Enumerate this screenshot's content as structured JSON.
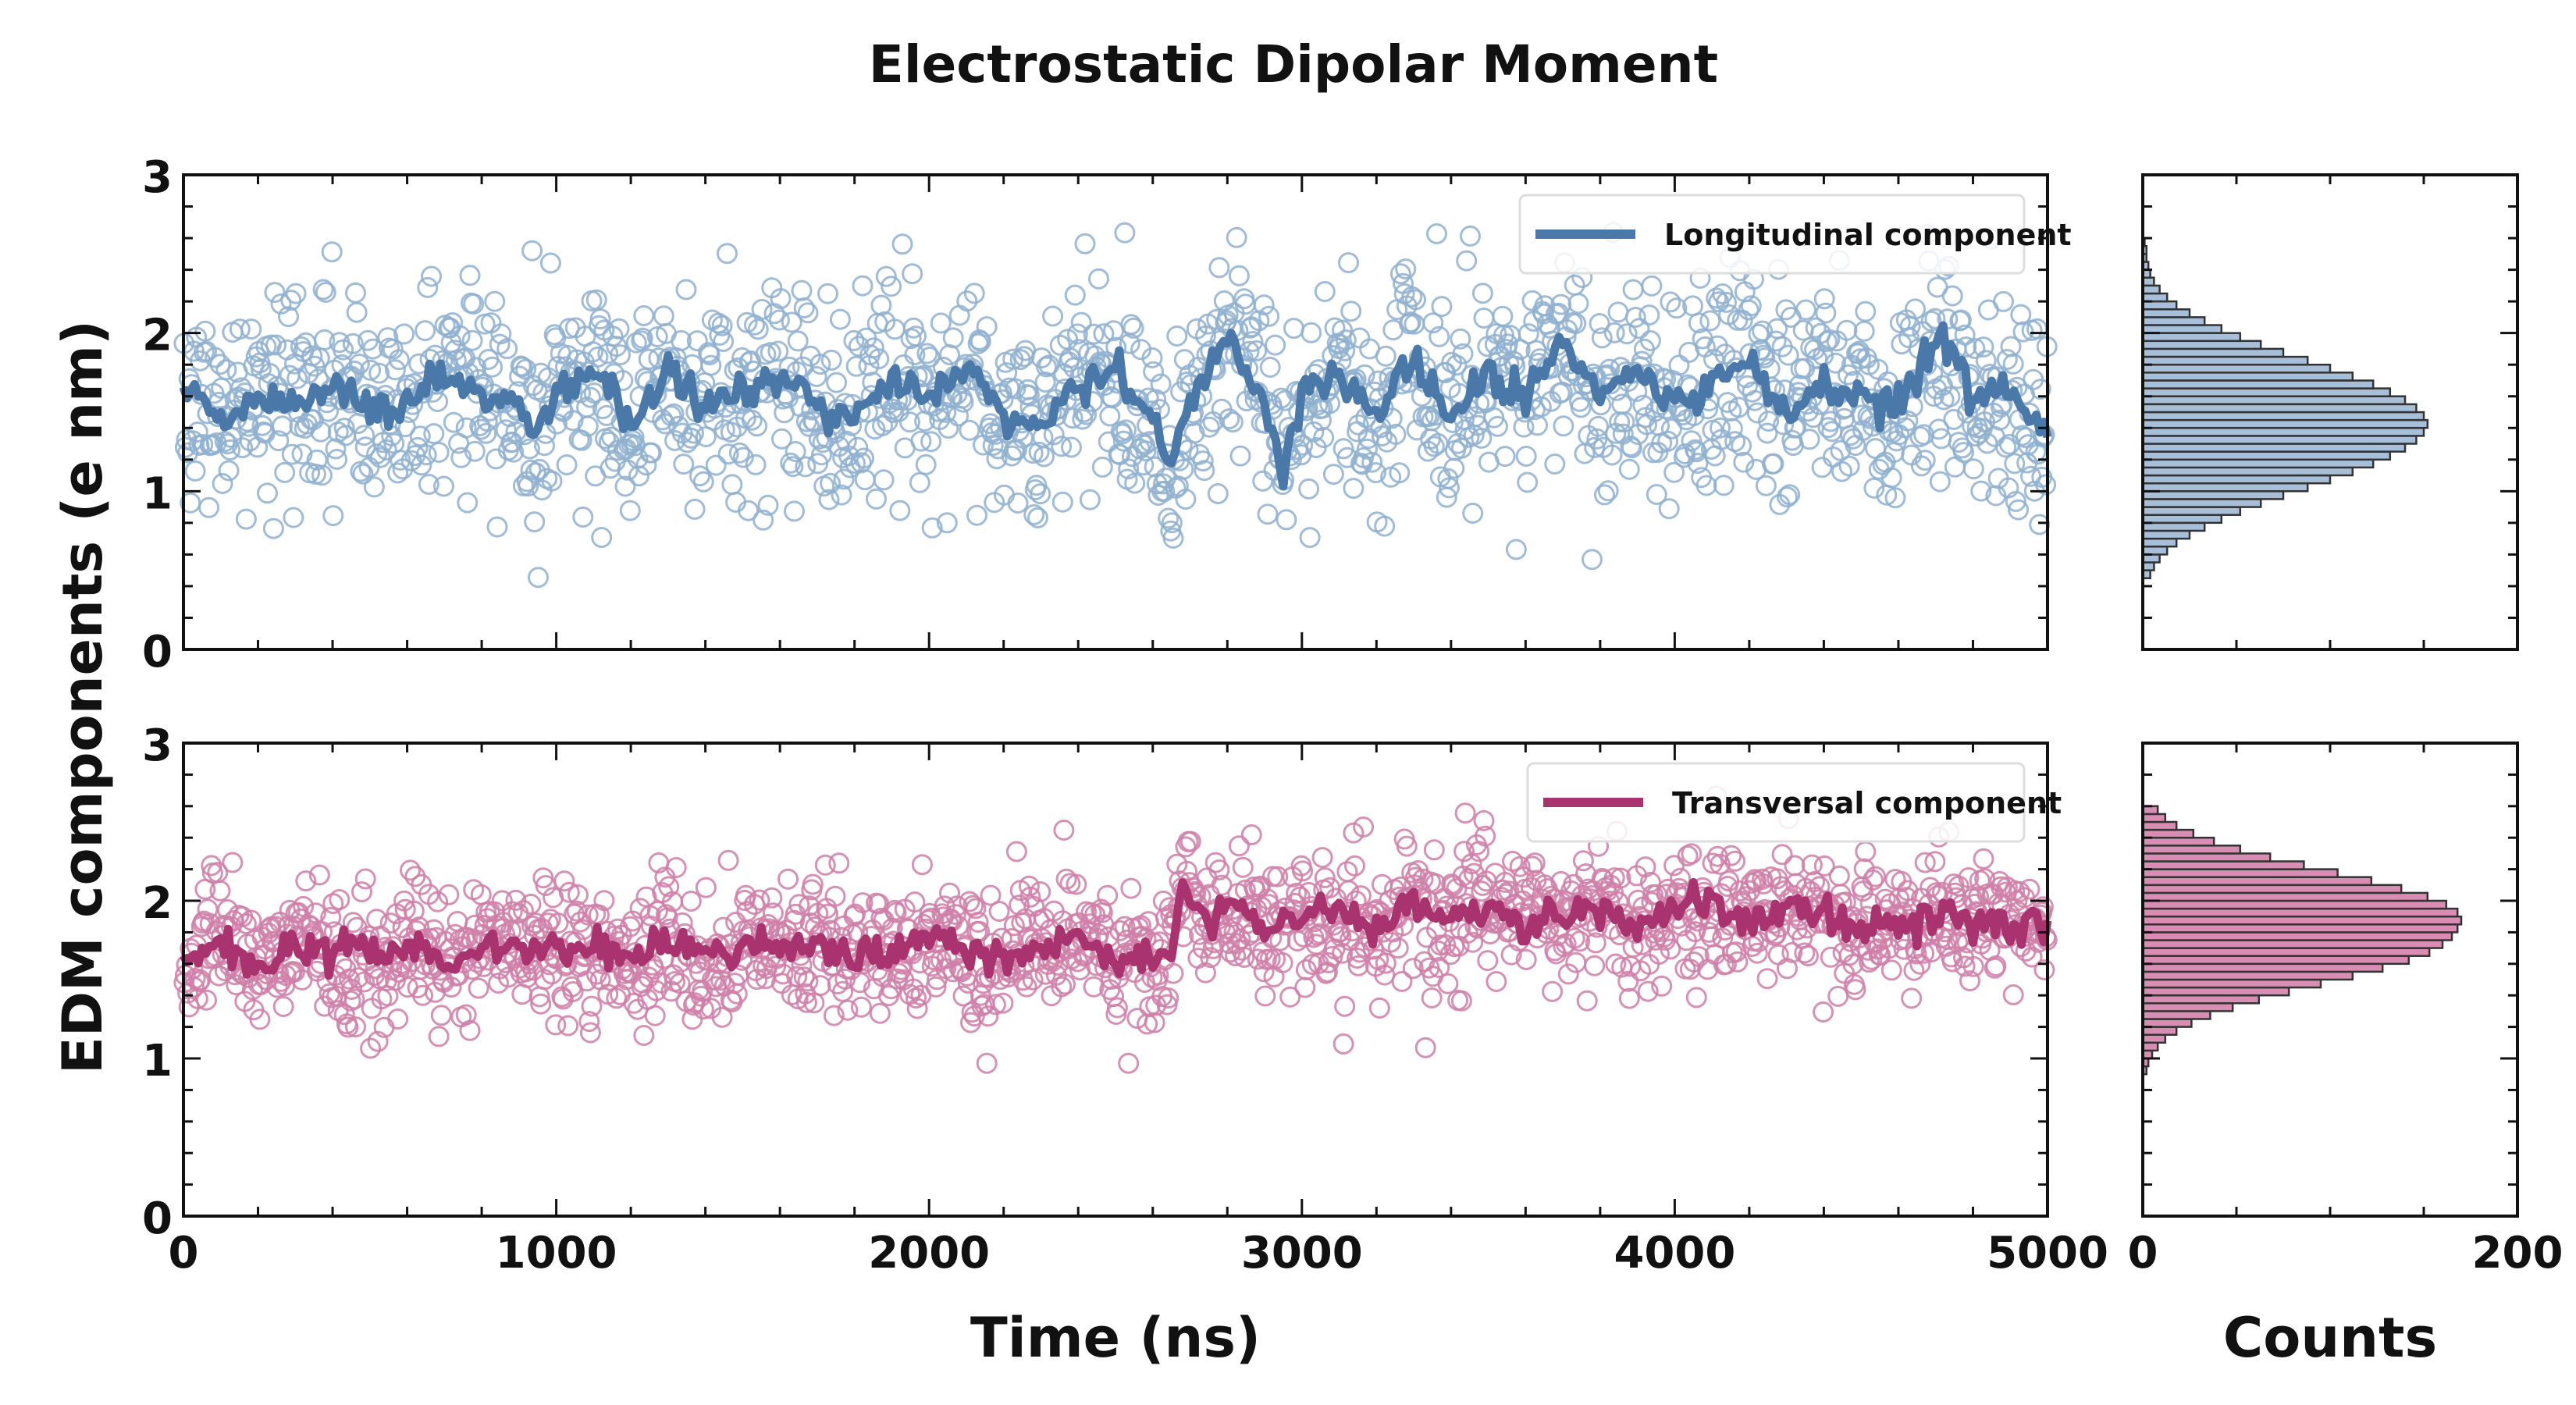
{
  "chart_data": {
    "type": "scatter",
    "title": "Electrostatic Dipolar Moment",
    "xlabel": "Time (ns)",
    "ylabel": "EDM components (e nm)",
    "hist_xlabel": "Counts",
    "xlim": [
      0,
      5000
    ],
    "ylim": [
      0,
      3
    ],
    "hist_xlim": [
      0,
      200
    ],
    "x_ticks": [
      "0",
      "1000",
      "2000",
      "3000",
      "4000",
      "5000"
    ],
    "y_ticks": [
      "0",
      "1",
      "2",
      "3"
    ],
    "hist_x_ticks": [
      "0",
      "200"
    ],
    "grid": false,
    "panels": [
      {
        "legend": "Longitudinal component",
        "legend_position": "top-right",
        "color": "#4a78a8",
        "point_color": "#8fb0cf",
        "hist_fill": "#a7bfd9",
        "scatter_mean": 1.62,
        "scatter_std": 0.38,
        "n_points": 1500,
        "running_average": [
          [
            0,
            1.62
          ],
          [
            100,
            1.45
          ],
          [
            200,
            1.6
          ],
          [
            300,
            1.58
          ],
          [
            400,
            1.65
          ],
          [
            500,
            1.5
          ],
          [
            600,
            1.55
          ],
          [
            700,
            1.75
          ],
          [
            800,
            1.62
          ],
          [
            900,
            1.58
          ],
          [
            950,
            1.35
          ],
          [
            1000,
            1.65
          ],
          [
            1100,
            1.75
          ],
          [
            1200,
            1.4
          ],
          [
            1300,
            1.78
          ],
          [
            1400,
            1.55
          ],
          [
            1500,
            1.6
          ],
          [
            1600,
            1.72
          ],
          [
            1700,
            1.55
          ],
          [
            1800,
            1.5
          ],
          [
            1900,
            1.72
          ],
          [
            2000,
            1.62
          ],
          [
            2100,
            1.75
          ],
          [
            2200,
            1.5
          ],
          [
            2300,
            1.38
          ],
          [
            2400,
            1.65
          ],
          [
            2500,
            1.75
          ],
          [
            2600,
            1.45
          ],
          [
            2650,
            1.2
          ],
          [
            2700,
            1.6
          ],
          [
            2800,
            1.95
          ],
          [
            2900,
            1.55
          ],
          [
            2950,
            1.15
          ],
          [
            3000,
            1.6
          ],
          [
            3100,
            1.75
          ],
          [
            3200,
            1.5
          ],
          [
            3300,
            1.9
          ],
          [
            3400,
            1.45
          ],
          [
            3500,
            1.7
          ],
          [
            3600,
            1.6
          ],
          [
            3700,
            1.95
          ],
          [
            3800,
            1.62
          ],
          [
            3900,
            1.7
          ],
          [
            4000,
            1.55
          ],
          [
            4100,
            1.65
          ],
          [
            4200,
            1.85
          ],
          [
            4300,
            1.45
          ],
          [
            4400,
            1.7
          ],
          [
            4500,
            1.62
          ],
          [
            4600,
            1.5
          ],
          [
            4700,
            1.95
          ],
          [
            4800,
            1.6
          ],
          [
            4900,
            1.65
          ],
          [
            5000,
            1.35
          ]
        ],
        "histogram": {
          "bin_edges_start": 0.45,
          "bin_width": 0.05,
          "counts": [
            4,
            6,
            9,
            13,
            18,
            25,
            33,
            42,
            52,
            63,
            75,
            88,
            100,
            112,
            123,
            132,
            140,
            146,
            150,
            152,
            150,
            146,
            140,
            132,
            123,
            112,
            100,
            88,
            75,
            63,
            52,
            42,
            33,
            25,
            18,
            13,
            9,
            6,
            4,
            3,
            2,
            2,
            1
          ]
        }
      },
      {
        "legend": "Transversal component",
        "legend_position": "top-right",
        "color": "#a8336e",
        "point_color": "#cf7fa8",
        "hist_fill": "#d98db3",
        "scatter_mean": 1.78,
        "scatter_std": 0.24,
        "n_points": 1500,
        "running_average": [
          [
            0,
            1.6
          ],
          [
            100,
            1.75
          ],
          [
            200,
            1.55
          ],
          [
            300,
            1.7
          ],
          [
            400,
            1.72
          ],
          [
            500,
            1.65
          ],
          [
            600,
            1.72
          ],
          [
            700,
            1.6
          ],
          [
            800,
            1.7
          ],
          [
            900,
            1.72
          ],
          [
            1000,
            1.68
          ],
          [
            1100,
            1.7
          ],
          [
            1200,
            1.62
          ],
          [
            1300,
            1.75
          ],
          [
            1400,
            1.65
          ],
          [
            1500,
            1.72
          ],
          [
            1600,
            1.7
          ],
          [
            1700,
            1.75
          ],
          [
            1800,
            1.62
          ],
          [
            1900,
            1.7
          ],
          [
            2000,
            1.78
          ],
          [
            2100,
            1.65
          ],
          [
            2200,
            1.6
          ],
          [
            2300,
            1.7
          ],
          [
            2400,
            1.75
          ],
          [
            2500,
            1.62
          ],
          [
            2600,
            1.65
          ],
          [
            2650,
            1.6
          ],
          [
            2680,
            2.1
          ],
          [
            2750,
            1.85
          ],
          [
            2800,
            1.95
          ],
          [
            2900,
            1.85
          ],
          [
            3000,
            1.9
          ],
          [
            3100,
            1.95
          ],
          [
            3200,
            1.85
          ],
          [
            3300,
            2.0
          ],
          [
            3400,
            1.88
          ],
          [
            3500,
            1.92
          ],
          [
            3600,
            1.85
          ],
          [
            3700,
            1.9
          ],
          [
            3800,
            1.95
          ],
          [
            3900,
            1.85
          ],
          [
            4000,
            1.92
          ],
          [
            4100,
            2.0
          ],
          [
            4200,
            1.85
          ],
          [
            4300,
            1.95
          ],
          [
            4400,
            1.88
          ],
          [
            4500,
            1.8
          ],
          [
            4600,
            1.85
          ],
          [
            4700,
            1.9
          ],
          [
            4800,
            1.85
          ],
          [
            4900,
            1.88
          ],
          [
            5000,
            1.85
          ]
        ],
        "histogram": {
          "bin_edges_start": 0.9,
          "bin_width": 0.05,
          "counts": [
            2,
            3,
            5,
            8,
            12,
            18,
            26,
            36,
            48,
            62,
            78,
            95,
            112,
            128,
            142,
            153,
            160,
            165,
            168,
            170,
            168,
            162,
            152,
            138,
            122,
            104,
            86,
            68,
            52,
            38,
            27,
            18,
            12,
            8
          ]
        }
      }
    ]
  }
}
